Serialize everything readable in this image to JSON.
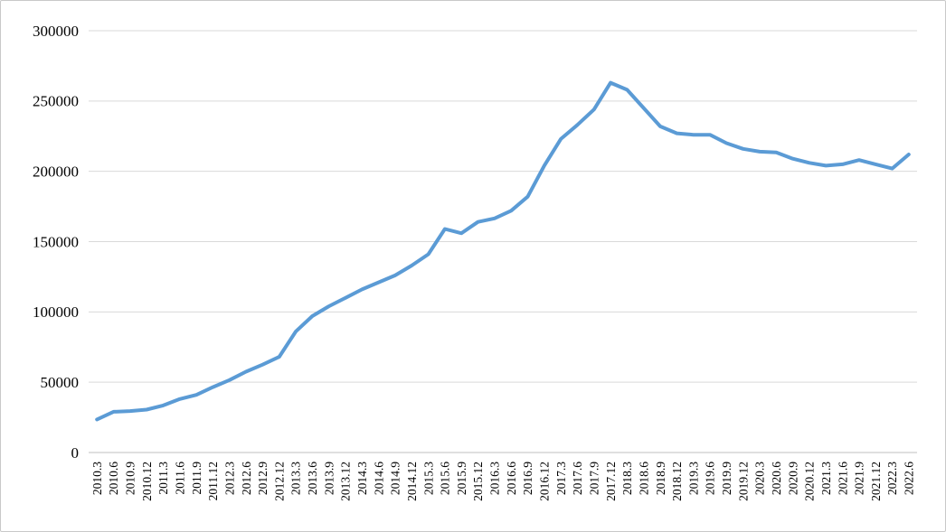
{
  "frame": {
    "background": "#FFFFFF",
    "border_color": "#C9C9C9"
  },
  "axis": {
    "gridline_color": "#D9D9D9",
    "axisline_color": "#BFBFBF",
    "text_color": "#000000"
  },
  "chart_data": {
    "type": "line",
    "title": "",
    "xlabel": "",
    "ylabel": "",
    "legend": "none",
    "grid": true,
    "x_label_rotation": -90,
    "ylim": [
      0,
      300000
    ],
    "yticks": [
      0,
      50000,
      100000,
      150000,
      200000,
      250000,
      300000
    ],
    "categories": [
      "2010.3",
      "2010.6",
      "2010.9",
      "2010.12",
      "2011.3",
      "2011.6",
      "2011.9",
      "2011.12",
      "2012.3",
      "2012.6",
      "2012.9",
      "2012.12",
      "2013.3",
      "2013.6",
      "2013.9",
      "2013.12",
      "2014.3",
      "2014.6",
      "2014.9",
      "2014.12",
      "2015.3",
      "2015.6",
      "2015.9",
      "2015.12",
      "2016.3",
      "2016.6",
      "2016.9",
      "2016.12",
      "2017.3",
      "2017.6",
      "2017.9",
      "2017.12",
      "2018.3",
      "2018.6",
      "2018.9",
      "2018.12",
      "2019.3",
      "2019.6",
      "2019.9",
      "2019.12",
      "2020.3",
      "2020.6",
      "2020.9",
      "2020.12",
      "2021.3",
      "2021.6",
      "2021.9",
      "2021.12",
      "2022.3",
      "2022.6"
    ],
    "series": [
      {
        "name": "series-1",
        "color": "#5B9BD5",
        "stroke_width": 4,
        "values": [
          23500,
          29000,
          29500,
          30500,
          33500,
          38000,
          41000,
          46500,
          51500,
          57500,
          62500,
          68000,
          86000,
          97000,
          104000,
          110000,
          116000,
          121000,
          126000,
          133000,
          141000,
          159000,
          156000,
          164000,
          166500,
          172000,
          182000,
          204000,
          223000,
          233000,
          244000,
          263000,
          258000,
          245000,
          232000,
          227000,
          226000,
          226000,
          220000,
          216000,
          214000,
          213500,
          209000,
          206000,
          204000,
          205000,
          208000,
          205000,
          202000,
          212000
        ]
      }
    ]
  }
}
